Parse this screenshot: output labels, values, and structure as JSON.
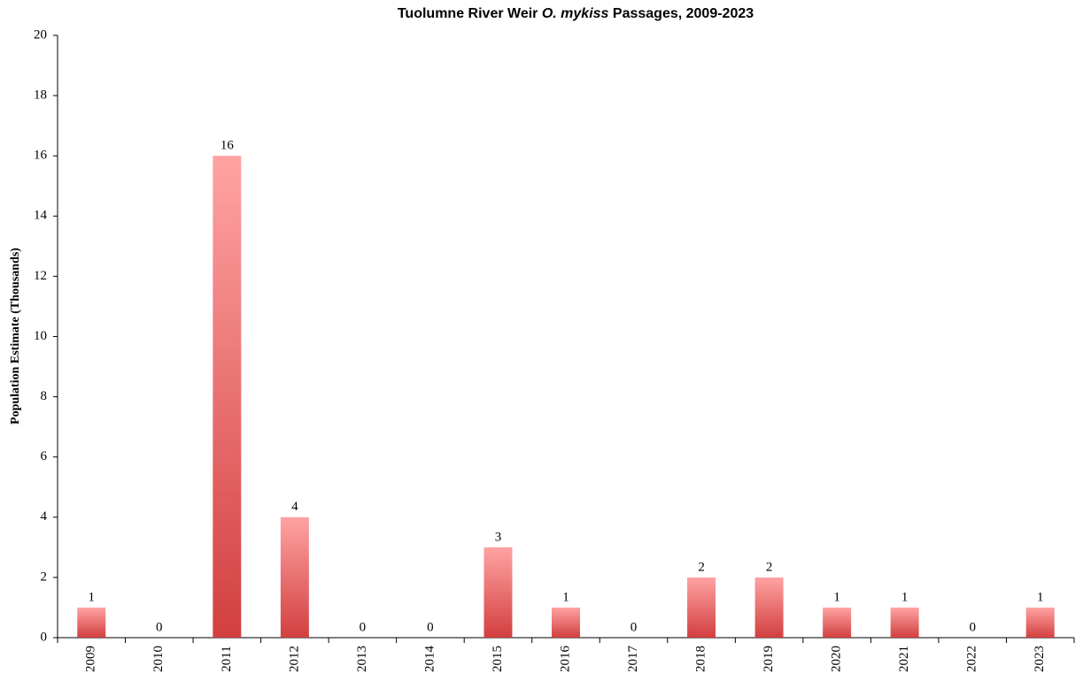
{
  "chart_data": {
    "type": "bar",
    "title": [
      "Tuolumne River Weir ",
      "O. mykiss",
      " Passages, 2009-2023"
    ],
    "y_label": "Population Estimate (Thousands)",
    "categories": [
      "2009",
      "2010",
      "2011",
      "2012",
      "2013",
      "2014",
      "2015",
      "2016",
      "2017",
      "2018",
      "2019",
      "2020",
      "2021",
      "2022",
      "2023"
    ],
    "values": [
      1,
      0,
      16,
      4,
      0,
      0,
      3,
      1,
      0,
      2,
      2,
      1,
      1,
      0,
      1
    ],
    "gradient": [
      "#ffa3a3",
      "#d23f3f"
    ],
    "ylim": [
      0,
      20
    ],
    "yticks": [
      0,
      2,
      4,
      6,
      8,
      10,
      12,
      14,
      16,
      18,
      20
    ],
    "grid": false
  }
}
